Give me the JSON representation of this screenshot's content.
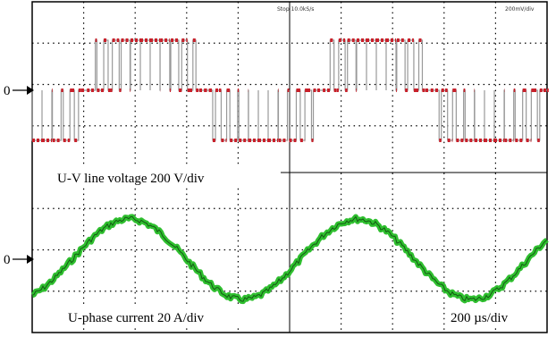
{
  "screen": {
    "status_left": "Stop 10.0kS/s",
    "status_right": "200mV/div"
  },
  "channels": [
    {
      "zero_marker": "0",
      "label": "U-V line voltage 200 V/div"
    },
    {
      "zero_marker": "0",
      "label": "U-phase current 20 A/div"
    }
  ],
  "timebase": "200 µs/div"
}
